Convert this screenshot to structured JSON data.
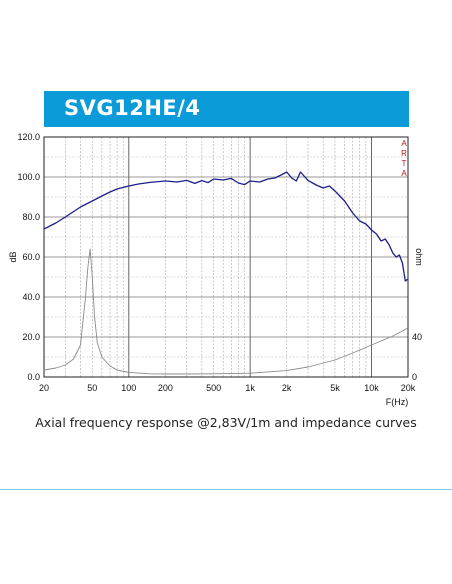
{
  "header": {
    "title": "SVG12HE/4"
  },
  "caption": "Axial frequency response @2,83V/1m and impedance curves",
  "chart_data": {
    "type": "line",
    "title": "",
    "xlabel": "F(Hz)",
    "ylabel": "dB",
    "y2label": "ohm",
    "watermark": "ARTA",
    "xscale": "log",
    "xlim": [
      20,
      20000
    ],
    "ylim": [
      0,
      120
    ],
    "y2_ticks": [
      "40",
      "0"
    ],
    "x_tick_labels": [
      "20",
      "50",
      "100",
      "200",
      "500",
      "1k",
      "2k",
      "5k",
      "10k",
      "20k"
    ],
    "y_tick_labels": [
      "0.0",
      "20.0",
      "40.0",
      "60.0",
      "80.0",
      "100.0",
      "120.0"
    ],
    "grid": true,
    "colors": {
      "spl": "#1c1f8a",
      "impedance": "#8a8a8a",
      "banner": "#0b9bd8",
      "watermark": "#b01818"
    },
    "series": [
      {
        "id": "spl",
        "x": [
          20,
          25,
          30,
          40,
          50,
          60,
          70,
          80,
          100,
          120,
          150,
          200,
          250,
          300,
          350,
          400,
          450,
          500,
          600,
          700,
          800,
          900,
          1000,
          1200,
          1400,
          1600,
          1800,
          2000,
          2200,
          2400,
          2600,
          3000,
          3500,
          4000,
          4500,
          5000,
          6000,
          7000,
          8000,
          9000,
          10000,
          11000,
          12000,
          13000,
          14000,
          15000,
          16000,
          17000,
          18000,
          19000,
          20000
        ],
        "y": [
          74,
          77,
          80,
          85,
          88,
          90.5,
          92.5,
          94,
          95.5,
          96.5,
          97.3,
          98,
          97.5,
          98.3,
          96.8,
          98.2,
          97.2,
          99,
          98.5,
          99.3,
          97,
          96.2,
          98,
          97.5,
          99,
          99.5,
          101,
          102.5,
          99.5,
          98,
          102.5,
          98.3,
          96,
          94.5,
          95.5,
          93,
          88,
          82,
          78,
          76.5,
          73.5,
          71.5,
          68,
          69,
          66,
          62,
          60,
          61,
          57,
          48,
          49
        ]
      },
      {
        "id": "impedance",
        "x": [
          20,
          25,
          30,
          35,
          40,
          44,
          46,
          48,
          50,
          52,
          55,
          60,
          70,
          80,
          100,
          150,
          200,
          300,
          500,
          1000,
          2000,
          3000,
          5000,
          7000,
          10000,
          15000,
          20000
        ],
        "y": [
          3.5,
          4.5,
          6,
          9,
          16,
          40,
          55,
          64,
          50,
          31,
          17,
          10,
          5.5,
          3.5,
          2.3,
          1.6,
          1.5,
          1.5,
          1.6,
          1.9,
          3.2,
          5,
          8.5,
          12,
          16,
          20.5,
          24.5
        ]
      }
    ]
  }
}
